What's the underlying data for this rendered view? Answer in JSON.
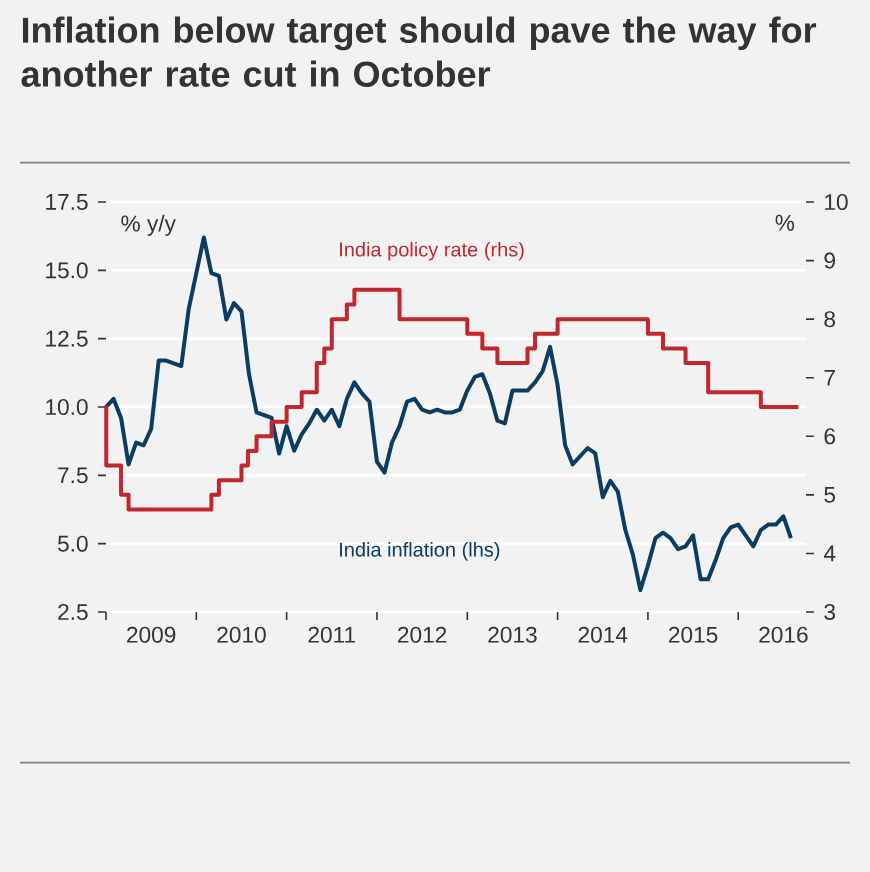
{
  "chart_data": {
    "type": "line",
    "title": "Inflation below target should pave the way for another rate cut in October",
    "ylabel": "% y/y",
    "y2label": "%",
    "xlim": [
      "2009-01",
      "2016-10"
    ],
    "xticks": [
      {
        "value": "2009-01",
        "label": null
      },
      {
        "value": "2009-07",
        "label": "2009"
      },
      {
        "value": "2010-01",
        "label": null
      },
      {
        "value": "2010-07",
        "label": "2010"
      },
      {
        "value": "2011-01",
        "label": null
      },
      {
        "value": "2011-07",
        "label": "2011"
      },
      {
        "value": "2012-01",
        "label": null
      },
      {
        "value": "2012-07",
        "label": "2012"
      },
      {
        "value": "2013-01",
        "label": null
      },
      {
        "value": "2013-07",
        "label": "2013"
      },
      {
        "value": "2014-01",
        "label": null
      },
      {
        "value": "2014-07",
        "label": "2014"
      },
      {
        "value": "2015-01",
        "label": null
      },
      {
        "value": "2015-07",
        "label": "2015"
      },
      {
        "value": "2016-01",
        "label": null
      },
      {
        "value": "2016-07",
        "label": "2016"
      }
    ],
    "ylim": [
      2.5,
      17.5
    ],
    "yticks": [
      2.5,
      {
        "value": 5,
        "label": "5.0"
      },
      7.5,
      {
        "value": 10,
        "label": "10.0"
      },
      12.5,
      {
        "value": 15,
        "label": "15.0"
      },
      17.5
    ],
    "y2lim": [
      3,
      10
    ],
    "y2ticks": [
      3,
      4,
      5,
      6,
      7,
      8,
      9,
      10
    ],
    "grid": "y",
    "series": [
      {
        "name": "India inflation (lhs)",
        "color": "#0b3d62",
        "x": [
          "2009-01",
          "2009-02",
          "2009-03",
          "2009-04",
          "2009-05",
          "2009-06",
          "2009-07",
          "2009-08",
          "2009-09",
          "2009-10",
          "2009-11",
          "2009-12",
          "2010-01",
          "2010-02",
          "2010-03",
          "2010-04",
          "2010-05",
          "2010-06",
          "2010-07",
          "2010-08",
          "2010-09",
          "2010-10",
          "2010-11",
          "2010-12",
          "2011-01",
          "2011-02",
          "2011-03",
          "2011-04",
          "2011-05",
          "2011-06",
          "2011-07",
          "2011-08",
          "2011-09",
          "2011-10",
          "2011-11",
          "2011-12",
          "2012-01",
          "2012-02",
          "2012-03",
          "2012-04",
          "2012-05",
          "2012-06",
          "2012-07",
          "2012-08",
          "2012-09",
          "2012-10",
          "2012-11",
          "2012-12",
          "2013-01",
          "2013-02",
          "2013-03",
          "2013-04",
          "2013-05",
          "2013-06",
          "2013-07",
          "2013-08",
          "2013-09",
          "2013-10",
          "2013-11",
          "2013-12",
          "2014-01",
          "2014-02",
          "2014-03",
          "2014-04",
          "2014-05",
          "2014-06",
          "2014-07",
          "2014-08",
          "2014-09",
          "2014-10",
          "2014-11",
          "2014-12",
          "2015-01",
          "2015-02",
          "2015-03",
          "2015-04",
          "2015-05",
          "2015-06",
          "2015-07",
          "2015-08",
          "2015-09",
          "2015-10",
          "2015-11",
          "2015-12",
          "2016-01",
          "2016-02",
          "2016-03",
          "2016-04",
          "2016-05",
          "2016-06",
          "2016-07",
          "2016-08"
        ],
        "values": [
          10.0,
          10.3,
          9.6,
          7.9,
          8.7,
          8.6,
          9.2,
          11.7,
          11.7,
          11.6,
          11.5,
          13.6,
          14.9,
          16.2,
          14.9,
          14.8,
          13.2,
          13.8,
          13.5,
          11.2,
          9.8,
          9.7,
          9.6,
          8.3,
          9.3,
          8.4,
          9.0,
          9.4,
          9.9,
          9.5,
          9.9,
          9.3,
          10.3,
          10.9,
          10.5,
          10.2,
          8.0,
          7.6,
          8.7,
          9.3,
          10.2,
          10.3,
          9.9,
          9.8,
          9.9,
          9.8,
          9.8,
          9.9,
          10.6,
          11.1,
          11.2,
          10.5,
          9.5,
          9.4,
          10.6,
          10.6,
          10.6,
          10.9,
          11.3,
          12.2,
          10.8,
          8.6,
          7.9,
          8.2,
          8.5,
          8.3,
          6.7,
          7.3,
          6.9,
          5.5,
          4.6,
          3.3,
          4.2,
          5.2,
          5.4,
          5.2,
          4.8,
          4.9,
          5.3,
          3.7,
          3.7,
          4.4,
          5.2,
          5.6,
          5.7,
          5.3,
          4.9,
          5.5,
          5.7,
          5.7,
          6.0,
          5.2
        ]
      },
      {
        "name": "India policy rate (rhs)",
        "type": "step",
        "axis": "y2",
        "color": "#c1272d",
        "x": [
          "2009-01-01",
          "2009-01-02",
          "2009-03",
          "2009-04",
          "2010-03",
          "2010-04",
          "2010-07",
          "2010-07-27",
          "2010-09",
          "2010-11",
          "2011-01",
          "2011-03",
          "2011-05",
          "2011-06",
          "2011-07",
          "2011-09",
          "2011-10",
          "2012-04",
          "2013-01",
          "2013-03",
          "2013-05",
          "2013-09",
          "2013-10",
          "2014-01",
          "2015-01",
          "2015-03",
          "2015-06",
          "2015-09",
          "2016-04",
          "2016-09"
        ],
        "values": [
          6.5,
          5.5,
          5.0,
          4.75,
          5.0,
          5.25,
          5.5,
          5.75,
          6.0,
          6.25,
          6.5,
          6.75,
          7.25,
          7.5,
          8.0,
          8.25,
          8.5,
          8.0,
          7.75,
          7.5,
          7.25,
          7.5,
          7.75,
          8.0,
          7.75,
          7.5,
          7.25,
          6.75,
          6.5,
          6.5
        ]
      }
    ]
  }
}
